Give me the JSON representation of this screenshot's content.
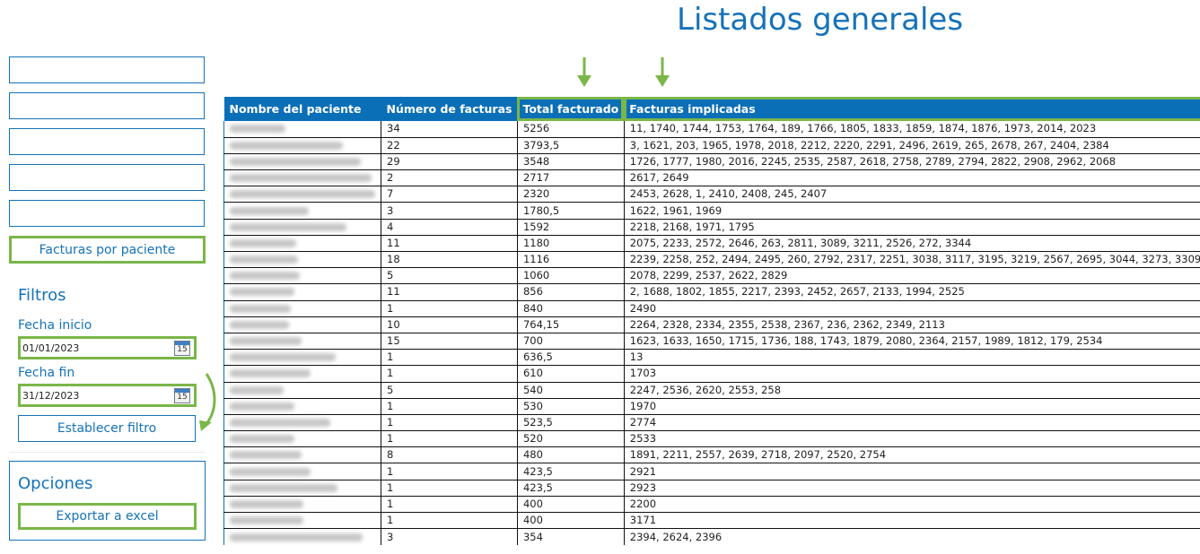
{
  "page": {
    "title": "Listados generales"
  },
  "sidebar": {
    "nav_boxes": [
      "",
      "",
      "",
      "",
      ""
    ],
    "nav_button_label": "Facturas por paciente",
    "filters": {
      "title": "Filtros",
      "start_label": "Fecha inicio",
      "start_value": "01/01/2023",
      "end_label": "Fecha fin",
      "end_value": "31/12/2023",
      "calendar_icon_text": "15",
      "apply_label": "Establecer filtro"
    },
    "options": {
      "title": "Opciones",
      "export_label": "Exportar a excel"
    }
  },
  "colors": {
    "accent": "#1572b8",
    "header_bg": "#0b6fb8",
    "highlight": "#7ab648"
  },
  "table": {
    "headers": [
      "Nombre del paciente",
      "Número de facturas",
      "Total facturado",
      "Facturas implicadas"
    ],
    "rows": [
      {
        "name": "[blurred]",
        "name_w": 62,
        "count": "34",
        "total": "5256",
        "invoices": "11, 1740, 1744, 1753, 1764, 189, 1766, 1805, 1833, 1859, 1874, 1876, 1973, 2014, 2023"
      },
      {
        "name": "[blurred]",
        "name_w": 126,
        "count": "22",
        "total": "3793,5",
        "invoices": "3, 1621, 203, 1965, 1978, 2018, 2212, 2220, 2291, 2496, 2619, 265, 2678, 267, 2404, 2384"
      },
      {
        "name": "[blurred]",
        "name_w": 146,
        "count": "29",
        "total": "3548",
        "invoices": "1726, 1777, 1980, 2016, 2245, 2535, 2587, 2618, 2758, 2789, 2794, 2822, 2908, 2962, 2068"
      },
      {
        "name": "[blurred]",
        "name_w": 158,
        "count": "2",
        "total": "2717",
        "invoices": "2617, 2649"
      },
      {
        "name": "[blurred]",
        "name_w": 162,
        "count": "7",
        "total": "2320",
        "invoices": "2453, 2628, 1, 2410, 2408, 245, 2407"
      },
      {
        "name": "[blurred]",
        "name_w": 88,
        "count": "3",
        "total": "1780,5",
        "invoices": "1622, 1961, 1969"
      },
      {
        "name": "[blurred]",
        "name_w": 130,
        "count": "4",
        "total": "1592",
        "invoices": "2218, 2168, 1971, 1795"
      },
      {
        "name": "[blurred]",
        "name_w": 74,
        "count": "11",
        "total": "1180",
        "invoices": "2075, 2233, 2572, 2646, 263, 2811, 3089, 3211, 2526, 272, 3344"
      },
      {
        "name": "[blurred]",
        "name_w": 76,
        "count": "18",
        "total": "1116",
        "invoices": "2239, 2258, 252, 2494, 2495, 260, 2792, 2317, 2251, 3038, 3117, 3195, 3219, 2567, 2695, 3044, 3273, 3309"
      },
      {
        "name": "[blurred]",
        "name_w": 78,
        "count": "5",
        "total": "1060",
        "invoices": "2078, 2299, 2537, 2622, 2829"
      },
      {
        "name": "[blurred]",
        "name_w": 72,
        "count": "11",
        "total": "856",
        "invoices": "2, 1688, 1802, 1855, 2217, 2393, 2452, 2657, 2133, 1994, 2525"
      },
      {
        "name": "[blurred]",
        "name_w": 68,
        "count": "1",
        "total": "840",
        "invoices": "2490"
      },
      {
        "name": "[blurred]",
        "name_w": 66,
        "count": "10",
        "total": "764,15",
        "invoices": "2264, 2328, 2334, 2355, 2538, 2367, 236, 2362, 2349, 2113"
      },
      {
        "name": "[blurred]",
        "name_w": 80,
        "count": "15",
        "total": "700",
        "invoices": "1623, 1633, 1650, 1715, 1736, 188, 1743, 1879, 2080, 2364, 2157, 1989, 1812, 179, 2534"
      },
      {
        "name": "[blurred]",
        "name_w": 118,
        "count": "1",
        "total": "636,5",
        "invoices": "13"
      },
      {
        "name": "[blurred]",
        "name_w": 90,
        "count": "1",
        "total": "610",
        "invoices": "1703"
      },
      {
        "name": "[blurred]",
        "name_w": 60,
        "count": "5",
        "total": "540",
        "invoices": "2247, 2536, 2620, 2553, 258"
      },
      {
        "name": "[blurred]",
        "name_w": 72,
        "count": "1",
        "total": "530",
        "invoices": "1970"
      },
      {
        "name": "[blurred]",
        "name_w": 112,
        "count": "1",
        "total": "523,5",
        "invoices": "2774"
      },
      {
        "name": "[blurred]",
        "name_w": 72,
        "count": "1",
        "total": "520",
        "invoices": "2533"
      },
      {
        "name": "[blurred]",
        "name_w": 80,
        "count": "8",
        "total": "480",
        "invoices": "1891, 2211, 2557, 2639, 2718, 2097, 2520, 2754"
      },
      {
        "name": "[blurred]",
        "name_w": 90,
        "count": "1",
        "total": "423,5",
        "invoices": "2921"
      },
      {
        "name": "[blurred]",
        "name_w": 120,
        "count": "1",
        "total": "423,5",
        "invoices": "2923"
      },
      {
        "name": "[blurred]",
        "name_w": 82,
        "count": "1",
        "total": "400",
        "invoices": "2200"
      },
      {
        "name": "[blurred]",
        "name_w": 82,
        "count": "1",
        "total": "400",
        "invoices": "3171"
      },
      {
        "name": "[blurred]",
        "name_w": 148,
        "count": "3",
        "total": "354",
        "invoices": "2394, 2624, 2396"
      }
    ]
  }
}
